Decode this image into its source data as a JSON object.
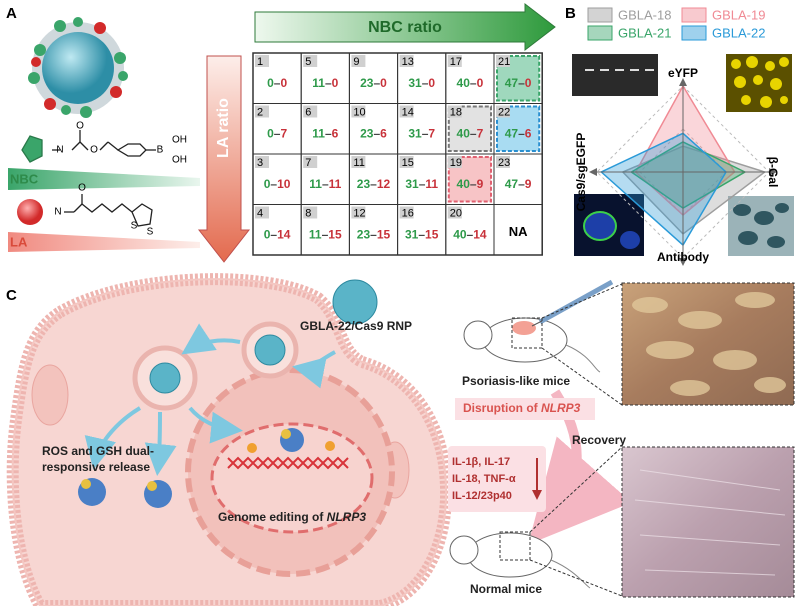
{
  "panel_a": {
    "letter": "A",
    "nbc_ratio": "NBC ratio",
    "la_ratio": "LA ratio",
    "nbc_label": "NBC",
    "la_label": "LA",
    "nbc_atoms": [
      "N",
      "O",
      "O",
      "B",
      "OH",
      "OH"
    ],
    "la_atoms": [
      "N",
      "O",
      "S",
      "S"
    ],
    "pair_separator": "–",
    "grid": {
      "rows": [
        [
          {
            "n": "1",
            "nbc": "0",
            "la": "0"
          },
          {
            "n": "5",
            "nbc": "11",
            "la": "0"
          },
          {
            "n": "9",
            "nbc": "23",
            "la": "0"
          },
          {
            "n": "13",
            "nbc": "31",
            "la": "0"
          },
          {
            "n": "17",
            "nbc": "40",
            "la": "0"
          },
          {
            "n": "21",
            "nbc": "47",
            "la": "0",
            "highlight": "#9fd8bd",
            "border": "#3aa56a"
          }
        ],
        [
          {
            "n": "2",
            "nbc": "0",
            "la": "7"
          },
          {
            "n": "6",
            "nbc": "11",
            "la": "6"
          },
          {
            "n": "10",
            "nbc": "23",
            "la": "6"
          },
          {
            "n": "14",
            "nbc": "31",
            "la": "7"
          },
          {
            "n": "18",
            "nbc": "40",
            "la": "7",
            "highlight": "#e2e2e2",
            "border": "#777777"
          },
          {
            "n": "22",
            "nbc": "47",
            "la": "6",
            "highlight": "#a9dcf2",
            "border": "#2a8fd0"
          }
        ],
        [
          {
            "n": "3",
            "nbc": "0",
            "la": "10"
          },
          {
            "n": "7",
            "nbc": "11",
            "la": "11"
          },
          {
            "n": "11",
            "nbc": "23",
            "la": "12"
          },
          {
            "n": "15",
            "nbc": "31",
            "la": "11"
          },
          {
            "n": "19",
            "nbc": "40",
            "la": "9",
            "highlight": "#f7c4c6",
            "border": "#e06070"
          },
          {
            "n": "23",
            "nbc": "47",
            "la": "9"
          }
        ],
        [
          {
            "n": "4",
            "nbc": "0",
            "la": "14"
          },
          {
            "n": "8",
            "nbc": "11",
            "la": "15"
          },
          {
            "n": "12",
            "nbc": "23",
            "la": "15"
          },
          {
            "n": "16",
            "nbc": "31",
            "la": "15"
          },
          {
            "n": "20",
            "nbc": "40",
            "la": "14"
          },
          {
            "text": "NA"
          }
        ]
      ]
    }
  },
  "panel_b": {
    "letter": "B",
    "radar": {
      "type": "radar",
      "axes": [
        "eYFP",
        "β-Gal",
        "Antibody",
        "Cas9/sgEGFP"
      ],
      "rlim": [
        0,
        1
      ],
      "series": [
        {
          "name": "GBLA-18",
          "color": "#9e9e9e",
          "values": [
            0.3,
            0.95,
            0.72,
            0.7
          ]
        },
        {
          "name": "GBLA-19",
          "color": "#f08a94",
          "values": [
            1.0,
            0.6,
            0.5,
            0.55
          ]
        },
        {
          "name": "GBLA-21",
          "color": "#3aa56a",
          "values": [
            0.35,
            0.72,
            0.42,
            0.6
          ]
        },
        {
          "name": "GBLA-22",
          "color": "#2a9ad8",
          "values": [
            0.45,
            0.5,
            0.85,
            0.95
          ]
        }
      ]
    }
  },
  "panel_c": {
    "letter": "C",
    "rnp_label": "GBLA-22/Cas9 RNP",
    "release_label": [
      "ROS and GSH dual-",
      "responsive release"
    ],
    "editing_label": [
      "Genome editing of ",
      "NLRP3"
    ],
    "psoriasis_label": "Psoriasis-like mice",
    "disruption_label": [
      "Disruption of ",
      "NLRP3"
    ],
    "recovery_label": "Recovery",
    "cytokines": [
      "IL-1β, IL-17",
      "IL-18, TNF-α",
      "IL-12/23p40"
    ],
    "normal_label": "Normal mice"
  }
}
